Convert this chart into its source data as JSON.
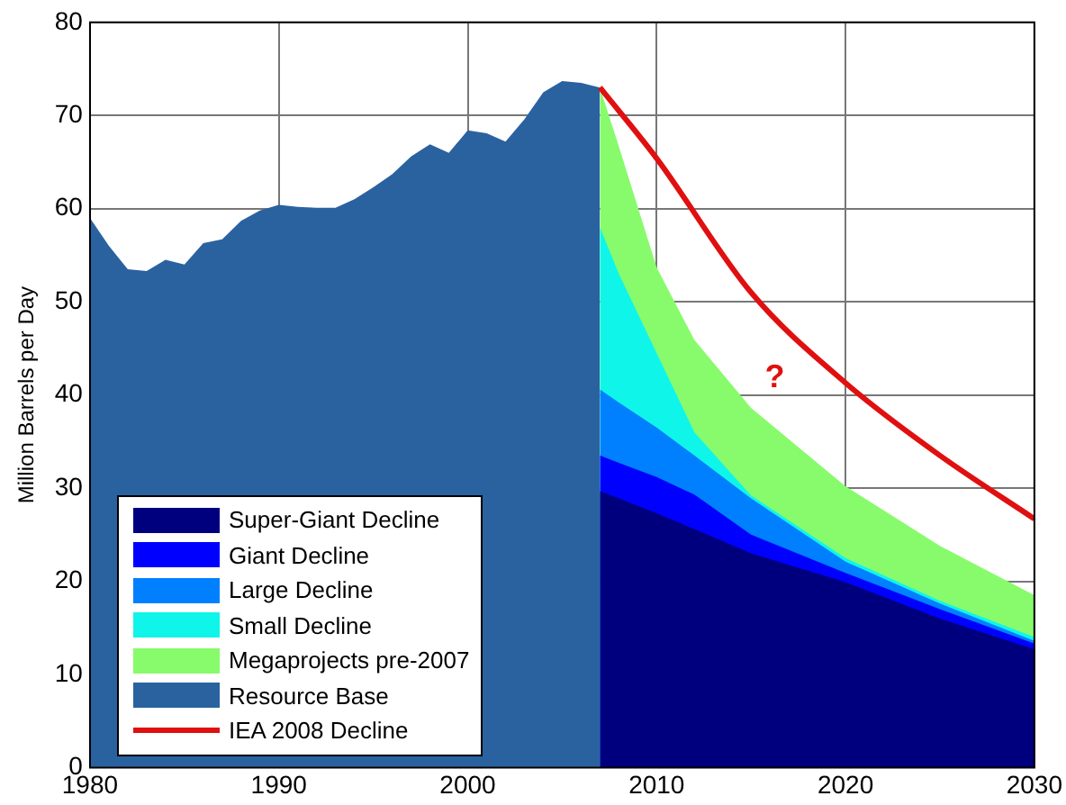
{
  "chart_data": {
    "type": "area",
    "ylabel": "Million Barrels per Day",
    "xlim": [
      1980,
      2030
    ],
    "xticks": [
      1980,
      1990,
      2000,
      2010,
      2020,
      2030
    ],
    "ylim": [
      0,
      80
    ],
    "yticks": [
      0,
      10,
      20,
      30,
      40,
      50,
      60,
      70,
      80
    ],
    "grid": true,
    "legend": "bottom left",
    "annotations": [
      "?"
    ],
    "series": [
      {
        "name": "Super-Giant Decline",
        "color": "#00007f",
        "x": [
          2007,
          2008,
          2010,
          2012,
          2015,
          2020,
          2025,
          2030
        ],
        "values": [
          29.7,
          28.9,
          27.3,
          25.6,
          23,
          19.9,
          16,
          12.7
        ]
      },
      {
        "name": "Giant Decline",
        "color": "#0000ff",
        "x": [
          2007,
          2008,
          2010,
          2012,
          2015,
          2020,
          2025,
          2030
        ],
        "values": [
          33.5,
          32.7,
          31.2,
          29.3,
          25,
          20.9,
          17,
          13.3
        ]
      },
      {
        "name": "Large Decline",
        "color": "#0080ff",
        "x": [
          2007,
          2008,
          2010,
          2012,
          2015,
          2020,
          2025,
          2030
        ],
        "values": [
          40.6,
          39.2,
          36.5,
          33.5,
          28.9,
          22.1,
          17.6,
          13.6
        ]
      },
      {
        "name": "Small Decline",
        "color": "#10f5ea",
        "x": [
          2007,
          2008,
          2010,
          2012,
          2015,
          2020,
          2025,
          2030
        ],
        "values": [
          58,
          53,
          44.5,
          36,
          29.2,
          22.5,
          17.9,
          14
        ]
      },
      {
        "name": "Megaprojects pre-2007",
        "color": "#88fb6c",
        "x": [
          2007,
          2008,
          2010,
          2012,
          2015,
          2020,
          2025,
          2030
        ],
        "values": [
          73,
          66.7,
          53.7,
          45.9,
          38.6,
          30.2,
          23.8,
          18.5
        ]
      },
      {
        "name": "Resource Base",
        "color": "#2a62a0",
        "x": [
          1980,
          1981,
          1982,
          1983,
          1984,
          1985,
          1986,
          1987,
          1988,
          1989,
          1990,
          1991,
          1992,
          1993,
          1994,
          1995,
          1996,
          1997,
          1998,
          1999,
          2000,
          2001,
          2002,
          2003,
          2004,
          2005,
          2006,
          2007
        ],
        "values": [
          59,
          56,
          53.5,
          53.3,
          54.5,
          54,
          56.3,
          56.7,
          58.7,
          59.8,
          60.4,
          60.2,
          60.1,
          60.1,
          61,
          62.3,
          63.7,
          65.6,
          66.9,
          66,
          68.4,
          68.1,
          67.2,
          69.6,
          72.5,
          73.7,
          73.5,
          73
        ]
      },
      {
        "name": "IEA 2008 Decline",
        "type": "line",
        "color": "#e01010",
        "x": [
          2007,
          2010,
          2015,
          2020,
          2025,
          2030
        ],
        "values": [
          73,
          65.4,
          51,
          41.3,
          33.5,
          26.7
        ]
      }
    ]
  }
}
